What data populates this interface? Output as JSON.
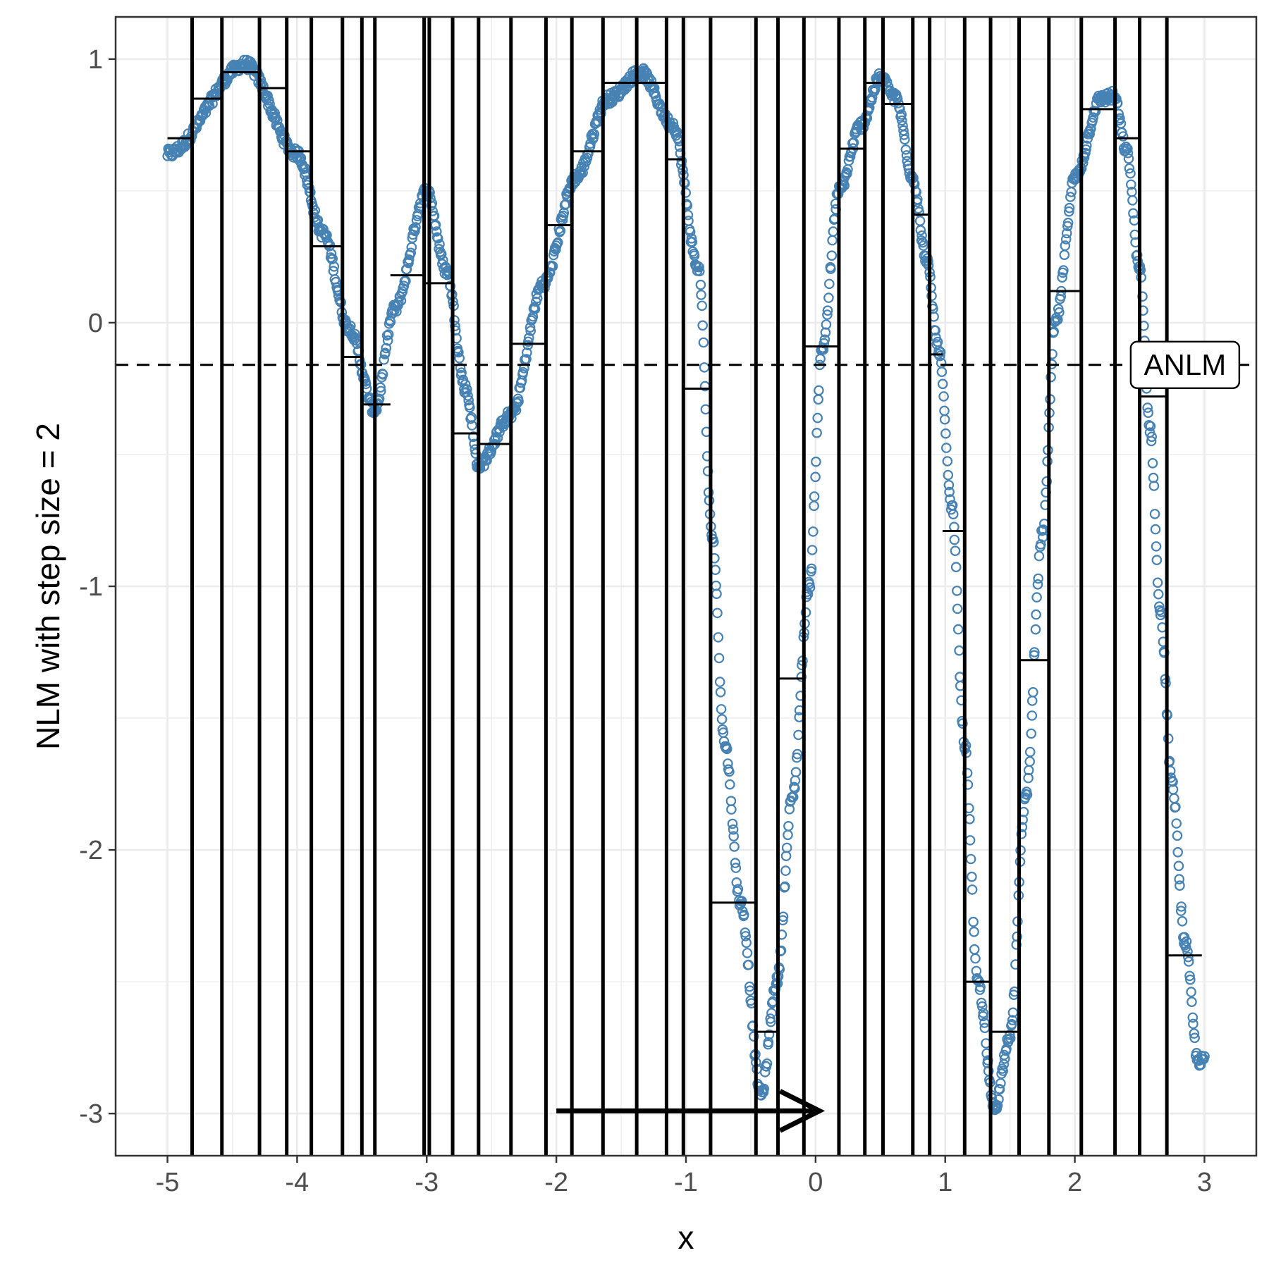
{
  "chart_data": {
    "type": "scatter",
    "title": "",
    "xlabel": "x",
    "ylabel": "NLM with step size = 2",
    "xlim": [
      -5.4,
      3.4
    ],
    "ylim": [
      -3.16,
      1.16
    ],
    "x_ticks": [
      -5,
      -4,
      -3,
      -2,
      -1,
      0,
      1,
      2,
      3
    ],
    "x_tick_labels": [
      "-5",
      "-4",
      "-3",
      "-2",
      "-1",
      "0",
      "1",
      "2",
      "3"
    ],
    "y_ticks": [
      -3,
      -2,
      -1,
      0,
      1
    ],
    "y_tick_labels": [
      "-3",
      "-2",
      "-1",
      "0",
      "1"
    ],
    "grid": true,
    "colors": {
      "points": "#4682b4",
      "lines": "#000000",
      "grid": "#ebebeb",
      "tick_text": "#4d4d4d"
    },
    "reference_line": {
      "y": -0.16,
      "style": "dashed",
      "label": "ANLM",
      "label_x": 2.85
    },
    "vertical_lines_x": [
      -4.81,
      -4.58,
      -4.29,
      -4.08,
      -3.89,
      -3.65,
      -3.5,
      -3.4,
      -3.02,
      -2.98,
      -2.8,
      -2.6,
      -2.35,
      -2.08,
      -1.88,
      -1.64,
      -1.38,
      -1.15,
      -1.02,
      -0.81,
      -0.46,
      -0.29,
      -0.09,
      0.18,
      0.38,
      0.52,
      0.75,
      0.88,
      1.15,
      1.35,
      1.57,
      1.8,
      2.05,
      2.31,
      2.5,
      2.71
    ],
    "steps": [
      {
        "x0": -5.0,
        "x1": -4.81,
        "y": 0.7
      },
      {
        "x0": -4.81,
        "x1": -4.58,
        "y": 0.85
      },
      {
        "x0": -4.58,
        "x1": -4.29,
        "y": 0.95
      },
      {
        "x0": -4.29,
        "x1": -4.08,
        "y": 0.89
      },
      {
        "x0": -4.08,
        "x1": -3.89,
        "y": 0.65
      },
      {
        "x0": -3.89,
        "x1": -3.65,
        "y": 0.29
      },
      {
        "x0": -3.65,
        "x1": -3.5,
        "y": -0.13
      },
      {
        "x0": -3.5,
        "x1": -3.28,
        "y": -0.31
      },
      {
        "x0": -3.28,
        "x1": -3.02,
        "y": 0.18
      },
      {
        "x0": -3.02,
        "x1": -2.8,
        "y": 0.15
      },
      {
        "x0": -2.8,
        "x1": -2.6,
        "y": -0.42
      },
      {
        "x0": -2.6,
        "x1": -2.35,
        "y": -0.46
      },
      {
        "x0": -2.35,
        "x1": -2.08,
        "y": -0.08
      },
      {
        "x0": -2.08,
        "x1": -1.88,
        "y": 0.37
      },
      {
        "x0": -1.88,
        "x1": -1.64,
        "y": 0.65
      },
      {
        "x0": -1.64,
        "x1": -1.15,
        "y": 0.91
      },
      {
        "x0": -1.15,
        "x1": -1.02,
        "y": 0.62
      },
      {
        "x0": -1.02,
        "x1": -0.81,
        "y": -0.25
      },
      {
        "x0": -0.81,
        "x1": -0.46,
        "y": -2.2
      },
      {
        "x0": -0.46,
        "x1": -0.29,
        "y": -2.69
      },
      {
        "x0": -0.29,
        "x1": -0.09,
        "y": -1.35
      },
      {
        "x0": -0.09,
        "x1": 0.18,
        "y": -0.09
      },
      {
        "x0": 0.18,
        "x1": 0.38,
        "y": 0.66
      },
      {
        "x0": 0.38,
        "x1": 0.52,
        "y": 0.91
      },
      {
        "x0": 0.52,
        "x1": 0.75,
        "y": 0.83
      },
      {
        "x0": 0.75,
        "x1": 0.88,
        "y": 0.41
      },
      {
        "x0": 0.88,
        "x1": 0.98,
        "y": -0.12
      },
      {
        "x0": 0.98,
        "x1": 1.15,
        "y": -0.79
      },
      {
        "x0": 1.15,
        "x1": 1.35,
        "y": -2.5
      },
      {
        "x0": 1.35,
        "x1": 1.57,
        "y": -2.69
      },
      {
        "x0": 1.57,
        "x1": 1.8,
        "y": -1.28
      },
      {
        "x0": 1.8,
        "x1": 2.05,
        "y": 0.12
      },
      {
        "x0": 2.05,
        "x1": 2.31,
        "y": 0.81
      },
      {
        "x0": 2.31,
        "x1": 2.5,
        "y": 0.7
      },
      {
        "x0": 2.5,
        "x1": 2.71,
        "y": -0.28
      },
      {
        "x0": 2.71,
        "x1": 2.98,
        "y": -2.4
      }
    ],
    "arrow": {
      "x0": -2.0,
      "x1": 0.03,
      "y": -2.99
    },
    "points_sample": {
      "x_start": -5.0,
      "x_end": 3.0,
      "count": 1400
    }
  }
}
